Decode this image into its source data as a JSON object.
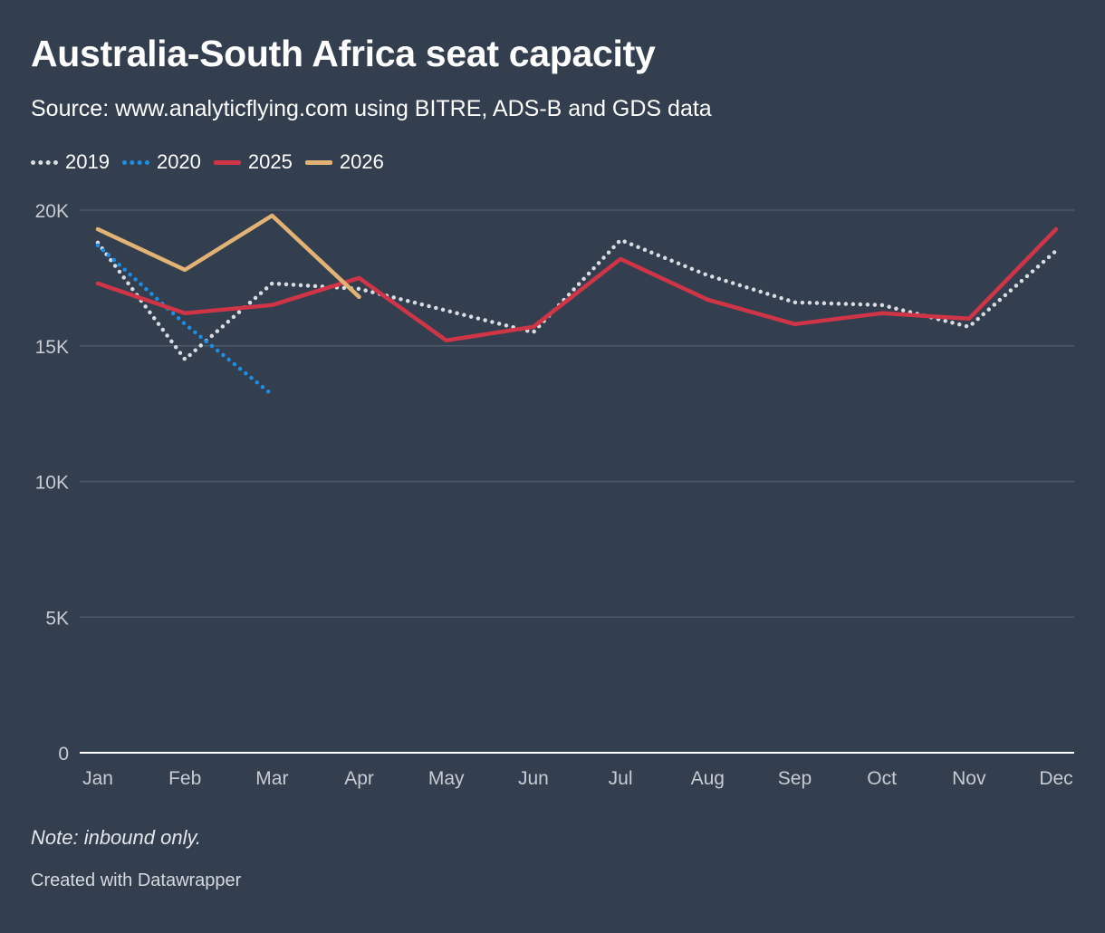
{
  "header": {
    "title": "Australia-South Africa seat capacity",
    "subtitle": "Source: www.analyticflying.com using BITRE, ADS-B and GDS data"
  },
  "footer": {
    "note": "Note: inbound only.",
    "credit": "Created with Datawrapper"
  },
  "colors": {
    "background": "#333e4f",
    "grid": "#4d5868",
    "axis": "#ffffff",
    "2019": "#d9dde2",
    "2020": "#1a8fe8",
    "2025": "#d03547",
    "2026": "#e2b374"
  },
  "chart_data": {
    "type": "line",
    "title": "Australia-South Africa seat capacity",
    "categories": [
      "Jan",
      "Feb",
      "Mar",
      "Apr",
      "May",
      "Jun",
      "Jul",
      "Aug",
      "Sep",
      "Oct",
      "Nov",
      "Dec"
    ],
    "ylim": [
      0,
      20000
    ],
    "yticks": [
      0,
      5000,
      10000,
      15000,
      20000
    ],
    "ytick_labels": [
      "0",
      "5K",
      "10K",
      "15K",
      "20K"
    ],
    "grid": true,
    "legend_position": "top-left",
    "series": [
      {
        "name": "2019",
        "style": "dotted",
        "color": "#d9dde2",
        "values": [
          18800,
          14500,
          17300,
          17100,
          16300,
          15500,
          18900,
          17600,
          16600,
          16500,
          15700,
          18500
        ]
      },
      {
        "name": "2020",
        "style": "dotted",
        "color": "#1a8fe8",
        "values": [
          18700,
          15800,
          13200,
          null,
          null,
          null,
          null,
          null,
          null,
          null,
          null,
          null
        ]
      },
      {
        "name": "2025",
        "style": "solid",
        "color": "#d03547",
        "values": [
          17300,
          16200,
          16500,
          17500,
          15200,
          15700,
          18200,
          16700,
          15800,
          16200,
          16000,
          19300
        ]
      },
      {
        "name": "2026",
        "style": "solid",
        "color": "#e2b374",
        "values": [
          19300,
          17800,
          19800,
          16800,
          null,
          null,
          null,
          null,
          null,
          null,
          null,
          null
        ]
      }
    ]
  }
}
